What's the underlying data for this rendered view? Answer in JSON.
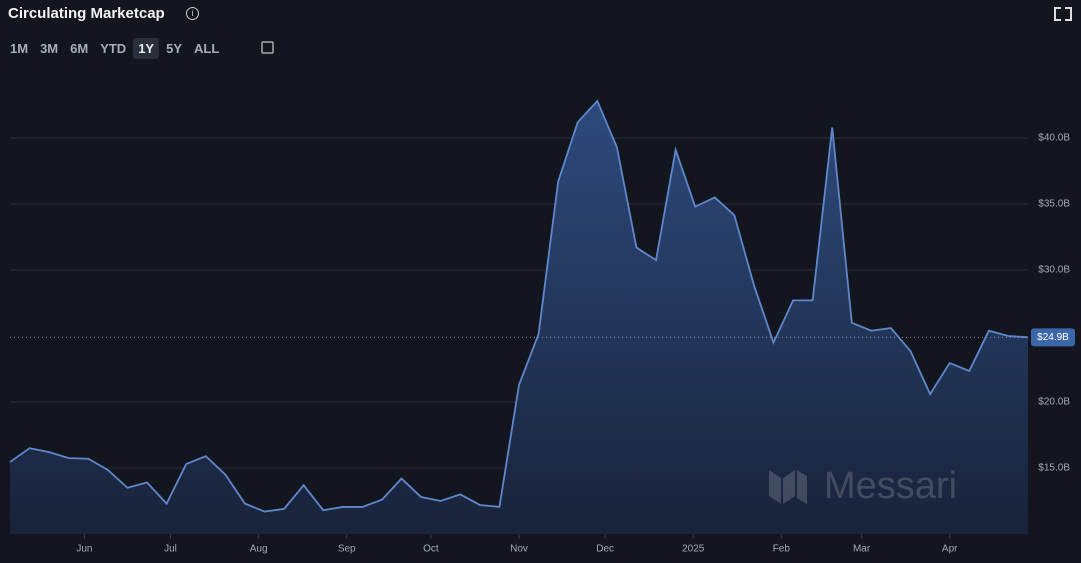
{
  "chart_data": {
    "type": "area",
    "title": "Circulating Marketcap",
    "range_buttons": [
      "1M",
      "3M",
      "6M",
      "YTD",
      "1Y",
      "5Y",
      "ALL"
    ],
    "active_range": 4,
    "watermark": "Messari",
    "color": "#5f88cb",
    "grid": true,
    "x": [
      0,
      1,
      2,
      3,
      4,
      5,
      6,
      7,
      8,
      9,
      10,
      11,
      12,
      13,
      14,
      15,
      16,
      17,
      18,
      19,
      20,
      21,
      22,
      23,
      24,
      25,
      26,
      27,
      28,
      29,
      30,
      31,
      32,
      33,
      34,
      35,
      36,
      37,
      38,
      39,
      40,
      41,
      42,
      43,
      44,
      45,
      46,
      47,
      48,
      49,
      50,
      51,
      52
    ],
    "values": [
      15.45,
      16.5,
      16.2,
      15.75,
      15.7,
      14.85,
      13.5,
      13.9,
      12.3,
      15.3,
      15.9,
      14.5,
      12.3,
      11.7,
      11.9,
      13.7,
      11.8,
      12.05,
      12.05,
      12.6,
      14.2,
      12.8,
      12.5,
      13.0,
      12.2,
      12.05,
      21.3,
      25.15,
      36.7,
      41.2,
      42.8,
      39.3,
      31.7,
      30.75,
      39.1,
      34.8,
      35.5,
      34.15,
      28.85,
      24.5,
      27.7,
      27.7,
      40.8,
      26.0,
      25.4,
      25.6,
      23.85,
      20.6,
      22.95,
      22.35,
      25.4,
      25.0,
      24.9
    ],
    "xlim": [
      0,
      52
    ],
    "ylim": [
      10,
      45
    ],
    "xticks": [
      {
        "value": 3.8,
        "label": "Jun"
      },
      {
        "value": 8.2,
        "label": "Jul"
      },
      {
        "value": 12.7,
        "label": "Aug"
      },
      {
        "value": 17.2,
        "label": "Sep"
      },
      {
        "value": 21.5,
        "label": "Oct"
      },
      {
        "value": 26.0,
        "label": "Nov"
      },
      {
        "value": 30.4,
        "label": "Dec"
      },
      {
        "value": 34.9,
        "label": "2025"
      },
      {
        "value": 39.4,
        "label": "Feb"
      },
      {
        "value": 43.5,
        "label": "Mar"
      },
      {
        "value": 48.0,
        "label": "Apr"
      }
    ],
    "yticks": [
      {
        "value": 15,
        "label": "$15.0B"
      },
      {
        "value": 20,
        "label": "$20.0B"
      },
      {
        "value": 30,
        "label": "$30.0B"
      },
      {
        "value": 35,
        "label": "$35.0B"
      },
      {
        "value": 40,
        "label": "$40.0B"
      }
    ],
    "last_value": 24.9,
    "last_value_label": "$24.9B"
  }
}
